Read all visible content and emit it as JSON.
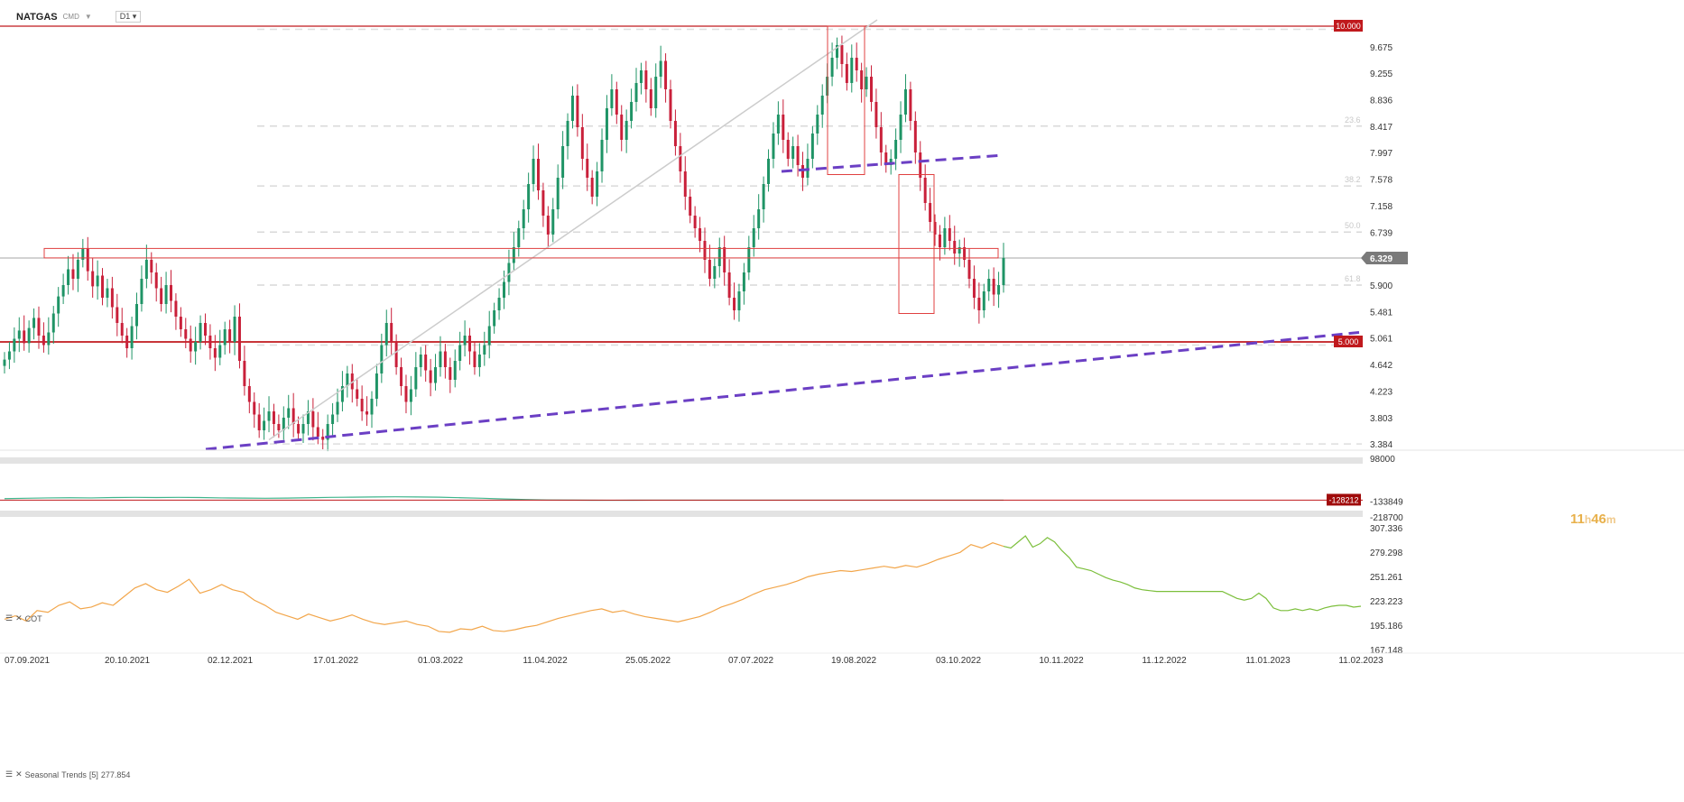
{
  "header": {
    "symbol": "NATGAS",
    "source": "CMD",
    "timeframe": "D1"
  },
  "panels": {
    "cot_label": "COT",
    "seasonal_label": "Seasonal",
    "seasonal_trends": "Trends",
    "seasonal_period": "[5]",
    "seasonal_value": "277.854"
  },
  "timer": {
    "hours": "11",
    "h": "h",
    "minutes": "46",
    "m": "m"
  },
  "colors": {
    "up": "#1f9466",
    "down": "#c9203a",
    "trend": "#6b3fc4",
    "level": "#c0191d",
    "cot": "#3fb58c",
    "seasonal": "#f2a64b",
    "seasonal_future": "#7cbf3c"
  },
  "chart_data": [
    {
      "type": "candlestick",
      "title": "NATGAS",
      "x_ticks": [
        "07.09.2021",
        "20.10.2021",
        "02.12.2021",
        "17.01.2022",
        "01.03.2022",
        "11.04.2022",
        "25.05.2022",
        "07.07.2022",
        "19.08.2022",
        "03.10.2022",
        "10.11.2022",
        "11.12.2022",
        "11.01.2023",
        "11.02.2023"
      ],
      "y_ticks": [
        3.384,
        3.803,
        4.223,
        4.642,
        5.061,
        5.481,
        5.9,
        6.739,
        7.158,
        7.578,
        7.997,
        8.417,
        8.836,
        9.255,
        9.675
      ],
      "ylim": [
        3.3,
        10.1
      ],
      "price_labels": {
        "resistance": "10.000",
        "current": "6.329",
        "support": "5.000"
      },
      "current_price": 6.329,
      "resistance": 10.0,
      "support": 5.0,
      "fibonacci": [
        {
          "label": "23.6",
          "value": 8.417
        },
        {
          "label": "38.2",
          "value": 7.47
        },
        {
          "label": "50.0",
          "value": 6.74
        },
        {
          "label": "61.8",
          "value": 5.9
        }
      ],
      "closes": [
        4.72,
        4.85,
        5.05,
        5.18,
        4.98,
        5.22,
        5.38,
        5.1,
        4.95,
        5.15,
        5.45,
        5.72,
        5.9,
        6.15,
        6.0,
        6.3,
        6.48,
        6.12,
        5.88,
        6.05,
        5.7,
        5.85,
        5.55,
        5.3,
        5.1,
        4.9,
        5.25,
        5.6,
        6.0,
        6.3,
        6.1,
        5.85,
        5.6,
        5.9,
        5.65,
        5.4,
        5.2,
        5.05,
        4.85,
        5.0,
        5.3,
        5.1,
        4.9,
        4.75,
        4.95,
        5.2,
        5.0,
        5.4,
        4.7,
        4.3,
        4.05,
        3.85,
        3.6,
        3.75,
        3.9,
        3.7,
        3.6,
        3.8,
        3.95,
        3.7,
        3.55,
        3.7,
        3.9,
        3.65,
        3.5,
        3.45,
        3.7,
        3.85,
        4.05,
        4.3,
        4.5,
        4.25,
        4.1,
        3.9,
        3.85,
        4.1,
        4.5,
        4.95,
        5.3,
        5.0,
        4.6,
        4.3,
        4.05,
        4.25,
        4.6,
        4.8,
        4.55,
        4.35,
        4.6,
        4.85,
        4.6,
        4.4,
        4.7,
        4.95,
        5.1,
        4.85,
        4.6,
        4.8,
        4.95,
        5.25,
        5.5,
        5.7,
        5.95,
        6.25,
        6.5,
        6.8,
        7.1,
        7.5,
        7.9,
        7.4,
        7.0,
        6.7,
        7.1,
        7.6,
        8.1,
        8.5,
        8.9,
        8.4,
        7.9,
        7.6,
        7.3,
        7.7,
        8.2,
        8.7,
        9.0,
        8.6,
        8.2,
        8.5,
        8.8,
        9.1,
        9.3,
        9.0,
        8.7,
        9.2,
        9.45,
        9.0,
        8.5,
        8.1,
        7.7,
        7.3,
        7.0,
        6.8,
        6.6,
        6.3,
        6.0,
        6.2,
        6.5,
        6.1,
        5.7,
        5.5,
        5.8,
        6.1,
        6.5,
        6.8,
        7.1,
        7.5,
        7.9,
        8.3,
        8.6,
        8.2,
        7.9,
        8.1,
        7.8,
        7.6,
        7.9,
        8.3,
        8.6,
        8.9,
        9.2,
        9.5,
        9.7,
        9.4,
        9.1,
        9.5,
        9.3,
        9.0,
        9.2,
        8.8,
        8.4,
        8.0,
        7.8,
        7.9,
        8.2,
        8.6,
        9.0,
        8.5,
        8.0,
        7.6,
        7.2,
        6.9,
        6.7,
        6.5,
        6.8,
        6.6,
        6.4,
        6.5,
        6.3,
        6.0,
        5.7,
        5.5,
        5.8,
        6.0,
        5.75,
        5.9,
        6.33
      ],
      "price_start_x": 5,
      "price_end_x": 1112
    },
    {
      "type": "line",
      "title": "COT",
      "y_ticks": [
        98000,
        -133849,
        -218700
      ],
      "ylim": [
        -218700,
        98000
      ],
      "price_label": "-128212",
      "values": [
        -120000,
        -118000,
        -116000,
        -115000,
        -116000,
        -114000,
        -113000,
        -114000,
        -113000,
        -114000,
        -116000,
        -117000,
        -118000,
        -117000,
        -115000,
        -113000,
        -112000,
        -111000,
        -110000,
        -111000,
        -112000,
        -115000,
        -118000,
        -122000,
        -125000,
        -127000,
        -128000,
        -128500,
        -128800,
        -128500,
        -128212,
        -128212,
        -128212,
        -128212,
        -128212,
        -128212,
        -128212,
        -128212,
        -128212,
        -128212,
        -128212,
        -128212,
        -128212,
        -128212,
        -128212,
        -128212,
        -128212
      ]
    },
    {
      "type": "line",
      "title": "Seasonal",
      "series": [
        {
          "name": "Seasonal",
          "values": [
            202,
            206,
            200,
            212,
            210,
            218,
            222,
            214,
            216,
            221,
            218,
            228,
            238,
            243,
            236,
            233,
            240,
            248,
            232,
            236,
            242,
            236,
            233,
            224,
            218,
            210,
            206,
            202,
            208,
            204,
            200,
            203,
            207,
            202,
            198,
            196,
            198,
            200,
            196,
            194,
            188,
            187,
            191,
            190,
            194,
            189,
            188,
            190,
            193,
            195,
            199,
            203,
            206,
            209,
            212,
            214,
            210,
            212,
            208,
            205,
            203,
            201,
            199,
            202,
            205,
            210,
            216,
            220,
            225,
            231,
            236,
            239,
            242,
            246,
            251,
            254,
            256,
            258,
            257,
            259,
            261,
            263,
            261,
            264,
            262,
            266,
            271,
            275,
            279,
            288,
            284,
            290,
            286
          ]
        },
        {
          "name": "Seasonal",
          "values": [
            286,
            284,
            291,
            298,
            285,
            289,
            296,
            291,
            281,
            273,
            262,
            260,
            258,
            254,
            250,
            247,
            245,
            242,
            238,
            236,
            235,
            234,
            234,
            234,
            234,
            234,
            234,
            234,
            234,
            234,
            234,
            230,
            226,
            224,
            226,
            232,
            226,
            215,
            212,
            212,
            214,
            212,
            214,
            212,
            215,
            217,
            218,
            218,
            216,
            217
          ]
        }
      ],
      "y_ticks": [
        307.336,
        279.298,
        251.261,
        223.223,
        195.186,
        167.148
      ],
      "ylim": [
        167.148,
        307.336
      ]
    }
  ]
}
